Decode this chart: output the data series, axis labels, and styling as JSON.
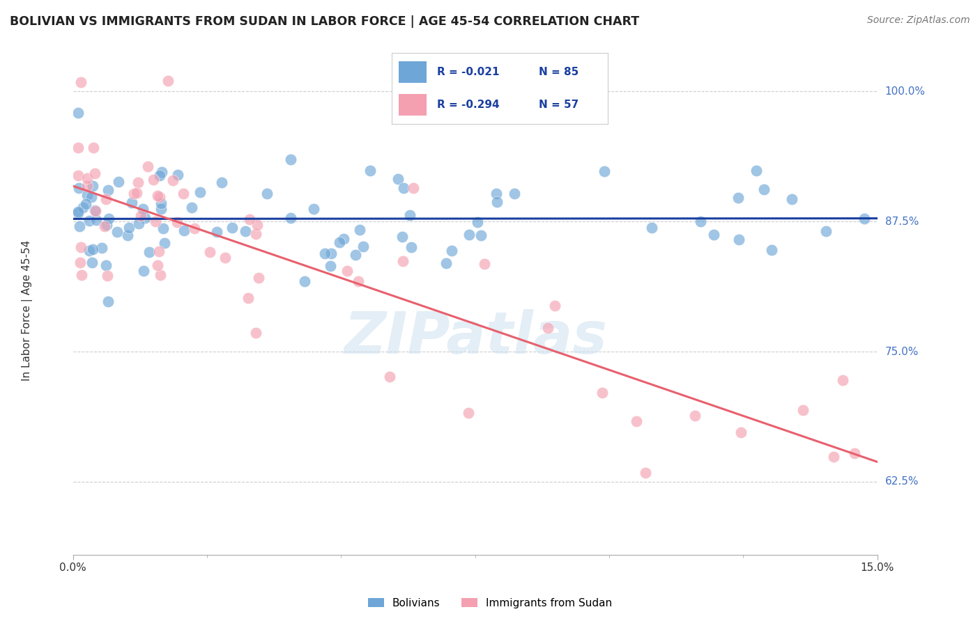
{
  "title": "BOLIVIAN VS IMMIGRANTS FROM SUDAN IN LABOR FORCE | AGE 45-54 CORRELATION CHART",
  "source": "Source: ZipAtlas.com",
  "ylabel": "In Labor Force | Age 45-54",
  "yticks": [
    0.625,
    0.75,
    0.875,
    1.0
  ],
  "ytick_labels": [
    "62.5%",
    "75.0%",
    "87.5%",
    "100.0%"
  ],
  "xlim": [
    0.0,
    0.15
  ],
  "ylim": [
    0.555,
    1.03
  ],
  "blue_color": "#6ea6d7",
  "pink_color": "#f4a0b0",
  "blue_line_color": "#1a3fa0",
  "pink_line_color": "#e8606e",
  "legend_r_blue": "-0.021",
  "legend_n_blue": "85",
  "legend_r_pink": "-0.294",
  "legend_n_pink": "57",
  "legend_label_blue": "Bolivians",
  "legend_label_pink": "Immigrants from Sudan",
  "watermark": "ZIPatlas"
}
